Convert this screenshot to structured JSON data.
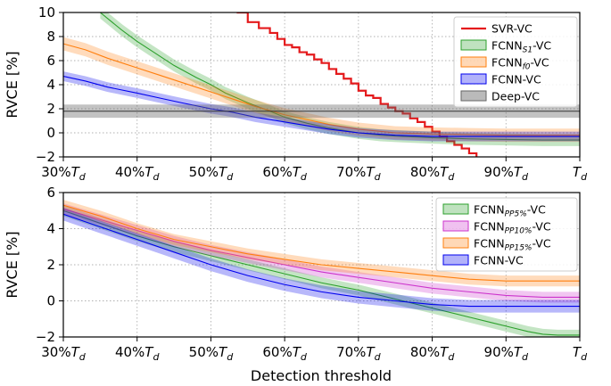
{
  "chart_data": [
    {
      "type": "line",
      "name": "top-panel",
      "ylabel": "RVCE [%]",
      "xlabel": "",
      "xlim": [
        30,
        100
      ],
      "ylim": [
        -2,
        10
      ],
      "grid": true,
      "legend_position": "top-right",
      "x_ticks": [
        {
          "pct": "30%",
          "sym": "T",
          "sub": "d"
        },
        {
          "pct": "40%",
          "sym": "T",
          "sub": "d"
        },
        {
          "pct": "50%",
          "sym": "T",
          "sub": "d"
        },
        {
          "pct": "60%",
          "sym": "T",
          "sub": "d"
        },
        {
          "pct": "70%",
          "sym": "T",
          "sub": "d"
        },
        {
          "pct": "80%",
          "sym": "T",
          "sub": "d"
        },
        {
          "pct": "90%",
          "sym": "T",
          "sub": "d"
        },
        {
          "pct": "",
          "sym": "T",
          "sub": "d"
        }
      ],
      "y_ticks": [
        "−2",
        "0",
        "2",
        "4",
        "6",
        "8",
        "10"
      ],
      "y_tick_values": [
        -2,
        0,
        2,
        4,
        6,
        8,
        10
      ],
      "x_tick_values": [
        30,
        40,
        50,
        60,
        70,
        80,
        90,
        100
      ],
      "series": [
        {
          "name": "SVR-VC",
          "legend_pre": "SVR-VC",
          "legend_sub": "",
          "legend_post": "",
          "color": "#e41a1c",
          "style": "line",
          "band": 0,
          "stepped": true,
          "x": [
            53.5,
            55,
            56.5,
            58,
            59,
            60,
            61,
            62,
            63,
            64,
            65,
            66,
            67,
            68,
            69,
            70,
            71,
            72,
            73,
            74,
            75,
            76,
            77,
            78,
            79,
            80,
            81,
            82,
            83,
            84,
            85,
            86
          ],
          "y": [
            10,
            9.2,
            8.7,
            8.3,
            7.8,
            7.3,
            7.1,
            6.7,
            6.5,
            6.1,
            5.8,
            5.3,
            4.9,
            4.5,
            4.1,
            3.5,
            3.1,
            2.9,
            2.4,
            2.1,
            1.8,
            1.6,
            1.2,
            0.9,
            0.5,
            0.1,
            -0.3,
            -0.7,
            -1.0,
            -1.3,
            -1.7,
            -2.0
          ]
        },
        {
          "name": "FCNN_S1-VC",
          "legend_pre": "FCNN",
          "legend_sub": "S1",
          "legend_post": "-VC",
          "color": "#2ca02c",
          "style": "band",
          "band": 0.5,
          "stepped": false,
          "x": [
            35,
            38,
            40,
            42,
            45,
            48,
            50,
            52,
            55,
            58,
            60,
            63,
            66,
            70,
            73,
            76,
            80,
            85,
            90,
            95,
            100
          ],
          "y": [
            10,
            8.5,
            7.6,
            6.8,
            5.6,
            4.6,
            4.0,
            3.3,
            2.5,
            1.8,
            1.3,
            0.8,
            0.4,
            0.0,
            -0.2,
            -0.3,
            -0.4,
            -0.5,
            -0.55,
            -0.6,
            -0.6
          ]
        },
        {
          "name": "FCNN_f0-VC",
          "legend_pre": "FCNN",
          "legend_sub": "f0",
          "legend_post": "-VC",
          "color": "#ff7f0e",
          "style": "band",
          "band": 0.55,
          "stepped": false,
          "x": [
            30,
            33,
            36,
            40,
            43,
            46,
            50,
            53,
            56,
            60,
            63,
            66,
            70,
            75,
            80,
            85,
            90,
            95,
            100
          ],
          "y": [
            7.4,
            6.9,
            6.2,
            5.4,
            4.8,
            4.2,
            3.4,
            2.8,
            2.2,
            1.5,
            1.1,
            0.7,
            0.3,
            0.0,
            -0.1,
            -0.15,
            -0.2,
            -0.2,
            -0.2
          ]
        },
        {
          "name": "FCNN-VC",
          "legend_pre": "FCNN-VC",
          "legend_sub": "",
          "legend_post": "",
          "color": "#0000ee",
          "style": "band",
          "band": 0.4,
          "stepped": false,
          "x": [
            30,
            33,
            36,
            40,
            43,
            46,
            50,
            53,
            56,
            60,
            63,
            66,
            70,
            75,
            80,
            85,
            90,
            95,
            100
          ],
          "y": [
            4.7,
            4.3,
            3.8,
            3.3,
            2.9,
            2.5,
            2.0,
            1.7,
            1.3,
            0.9,
            0.6,
            0.3,
            0.0,
            -0.2,
            -0.3,
            -0.3,
            -0.3,
            -0.3,
            -0.3
          ]
        },
        {
          "name": "Deep-VC",
          "legend_pre": "Deep-VC",
          "legend_sub": "",
          "legend_post": "",
          "color": "#666666",
          "style": "hband",
          "band": 0.55,
          "stepped": false,
          "x": [
            30,
            100
          ],
          "y": [
            1.8,
            1.8
          ]
        }
      ]
    },
    {
      "type": "line",
      "name": "bottom-panel",
      "ylabel": "RVCE [%]",
      "xlabel": "Detection threshold",
      "xlim": [
        30,
        100
      ],
      "ylim": [
        -2,
        6
      ],
      "grid": true,
      "legend_position": "top-right",
      "x_ticks": [
        {
          "pct": "30%",
          "sym": "T",
          "sub": "d"
        },
        {
          "pct": "40%",
          "sym": "T",
          "sub": "d"
        },
        {
          "pct": "50%",
          "sym": "T",
          "sub": "d"
        },
        {
          "pct": "60%",
          "sym": "T",
          "sub": "d"
        },
        {
          "pct": "70%",
          "sym": "T",
          "sub": "d"
        },
        {
          "pct": "80%",
          "sym": "T",
          "sub": "d"
        },
        {
          "pct": "90%",
          "sym": "T",
          "sub": "d"
        },
        {
          "pct": "",
          "sym": "T",
          "sub": "d"
        }
      ],
      "y_ticks": [
        "−2",
        "0",
        "2",
        "4",
        "6"
      ],
      "y_tick_values": [
        -2,
        0,
        2,
        4,
        6
      ],
      "x_tick_values": [
        30,
        40,
        50,
        60,
        70,
        80,
        90,
        100
      ],
      "series": [
        {
          "name": "FCNN_PP5%-VC",
          "legend_pre": "FCNN",
          "legend_sub": "PP5%",
          "legend_post": "-VC",
          "color": "#2ca02c",
          "style": "band",
          "band": 0.3,
          "stepped": false,
          "x": [
            30,
            35,
            40,
            45,
            50,
            55,
            60,
            65,
            70,
            75,
            80,
            85,
            88,
            91,
            93,
            95,
            97,
            100
          ],
          "y": [
            5.0,
            4.3,
            3.6,
            3.0,
            2.5,
            2.0,
            1.5,
            1.0,
            0.6,
            0.1,
            -0.4,
            -0.9,
            -1.2,
            -1.5,
            -1.7,
            -1.85,
            -1.9,
            -1.9
          ]
        },
        {
          "name": "FCNN_PP10%-VC",
          "legend_pre": "FCNN",
          "legend_sub": "PP10%",
          "legend_post": "-VC",
          "color": "#cc33cc",
          "style": "band",
          "band": 0.3,
          "stepped": false,
          "x": [
            30,
            35,
            40,
            45,
            50,
            55,
            60,
            65,
            70,
            75,
            80,
            85,
            90,
            95,
            100
          ],
          "y": [
            5.1,
            4.5,
            3.9,
            3.3,
            2.8,
            2.4,
            2.0,
            1.6,
            1.3,
            1.0,
            0.7,
            0.5,
            0.3,
            0.2,
            0.2
          ]
        },
        {
          "name": "FCNN_PP15%-VC",
          "legend_pre": "FCNN",
          "legend_sub": "PP15%",
          "legend_post": "-VC",
          "color": "#ff7f0e",
          "style": "band",
          "band": 0.3,
          "stepped": false,
          "x": [
            30,
            35,
            40,
            45,
            50,
            55,
            60,
            65,
            70,
            75,
            80,
            85,
            90,
            95,
            100
          ],
          "y": [
            5.3,
            4.7,
            4.0,
            3.4,
            3.0,
            2.6,
            2.3,
            2.0,
            1.8,
            1.6,
            1.4,
            1.2,
            1.1,
            1.1,
            1.1
          ]
        },
        {
          "name": "FCNN-VC",
          "legend_pre": "FCNN-VC",
          "legend_sub": "",
          "legend_post": "",
          "color": "#0000ee",
          "style": "band",
          "band": 0.35,
          "stepped": false,
          "x": [
            30,
            35,
            40,
            45,
            50,
            55,
            60,
            65,
            70,
            75,
            80,
            85,
            90,
            95,
            100
          ],
          "y": [
            4.8,
            4.1,
            3.4,
            2.7,
            2.0,
            1.4,
            0.9,
            0.5,
            0.2,
            0.0,
            -0.2,
            -0.3,
            -0.3,
            -0.3,
            -0.3
          ]
        }
      ]
    }
  ]
}
